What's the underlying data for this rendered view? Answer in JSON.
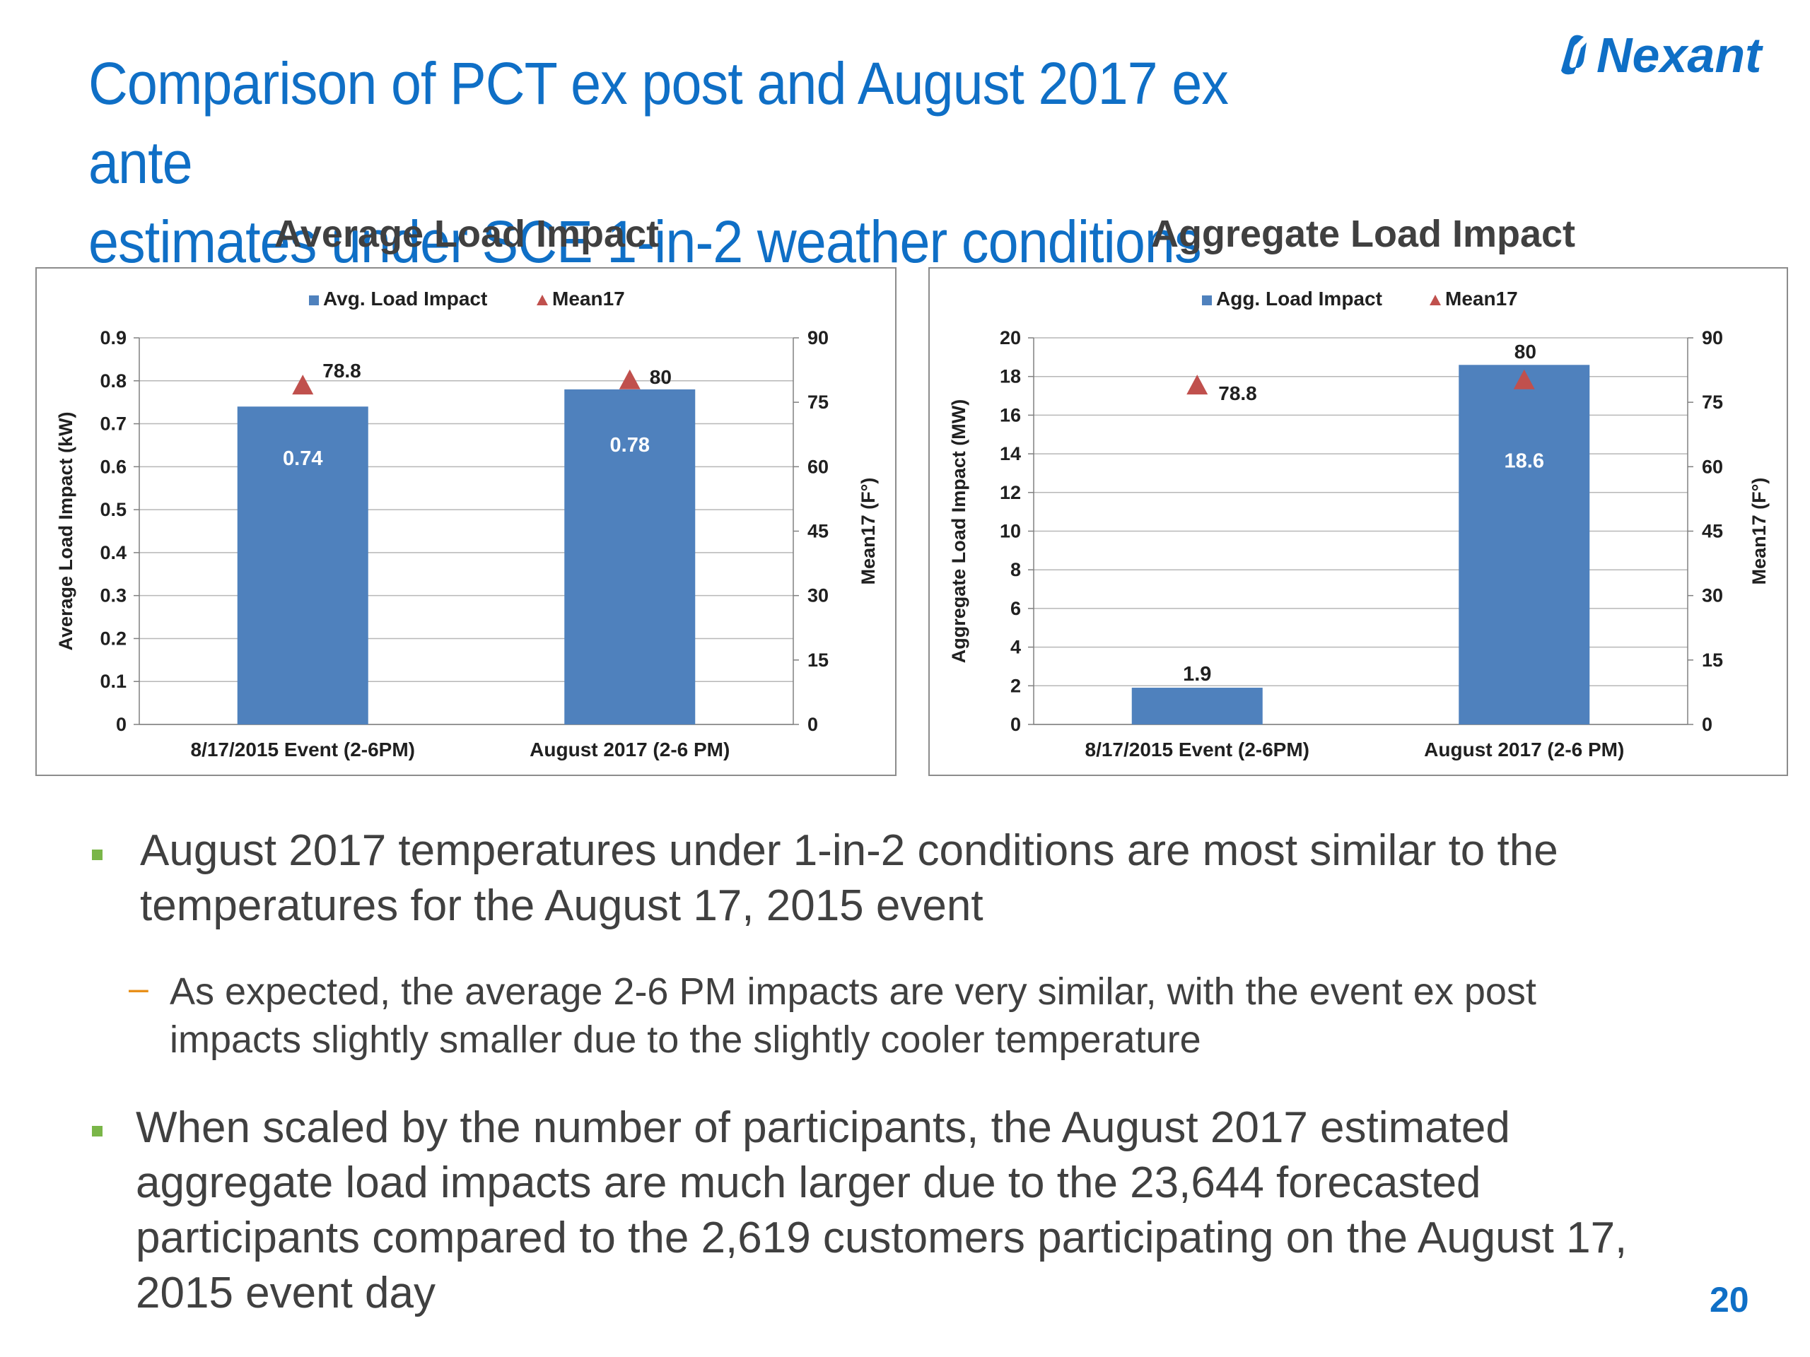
{
  "title": {
    "line1": "Comparison of PCT ex post and August 2017 ex ante",
    "line2": "estimates under SCE 1-in-2 weather conditions"
  },
  "logo": {
    "text": "Nexant",
    "color": "#0f6fc6"
  },
  "colors": {
    "bar": "#4f81bd",
    "marker": "#c0504d",
    "title": "#0f6fc6",
    "bullet": "#7ab648",
    "dash": "#e8901a"
  },
  "chart_data": [
    {
      "type": "bar",
      "title": "Average Load Impact",
      "categories": [
        "8/17/2015 Event (2-6PM)",
        "August 2017 (2-6 PM)"
      ],
      "series": [
        {
          "name": "Avg. Load Impact",
          "type": "bar",
          "axis": "left",
          "values": [
            0.74,
            0.78
          ],
          "labels": [
            "0.74",
            "0.78"
          ]
        },
        {
          "name": "Mean17",
          "type": "scatter",
          "marker": "triangle",
          "axis": "right",
          "values": [
            78.8,
            80
          ],
          "labels": [
            "78.8",
            "80"
          ]
        }
      ],
      "ylabel": "Average Load Impact (kW)",
      "y2label": "Mean17 (F°)",
      "ylim": [
        0,
        0.9
      ],
      "yticks": [
        "0",
        "0.1",
        "0.2",
        "0.3",
        "0.4",
        "0.5",
        "0.6",
        "0.7",
        "0.8",
        "0.9"
      ],
      "y2lim": [
        0,
        90
      ],
      "y2ticks": [
        "0",
        "15",
        "30",
        "45",
        "60",
        "75",
        "90"
      ],
      "legend": "top-center",
      "grid": true
    },
    {
      "type": "bar",
      "title": "Aggregate Load Impact",
      "categories": [
        "8/17/2015 Event (2-6PM)",
        "August 2017 (2-6 PM)"
      ],
      "series": [
        {
          "name": "Agg. Load Impact",
          "type": "bar",
          "axis": "left",
          "values": [
            1.9,
            18.6
          ],
          "labels": [
            "1.9",
            "18.6"
          ]
        },
        {
          "name": "Mean17",
          "type": "scatter",
          "marker": "triangle",
          "axis": "right",
          "values": [
            78.8,
            80
          ],
          "labels": [
            "78.8",
            "80"
          ]
        }
      ],
      "ylabel": "Aggregate Load Impact (MW)",
      "y2label": "Mean17 (F°)",
      "ylim": [
        0,
        20
      ],
      "yticks": [
        "0",
        "2",
        "4",
        "6",
        "8",
        "10",
        "12",
        "14",
        "16",
        "18",
        "20"
      ],
      "y2lim": [
        0,
        90
      ],
      "y2ticks": [
        "0",
        "15",
        "30",
        "45",
        "60",
        "75",
        "90"
      ],
      "legend": "top-center",
      "grid": true
    }
  ],
  "bullets": [
    {
      "line1": "August 2017 temperatures under 1-in-2 conditions are most similar to the",
      "line2": "temperatures for the August 17, 2015 event",
      "sub": {
        "dash": "–",
        "line1": "As expected, the average 2-6 PM impacts are very similar, with the event ex post",
        "line2": "impacts slightly smaller due to the slightly cooler temperature"
      }
    },
    {
      "line1": "When scaled by the number of participants, the August 2017 estimated",
      "line2": "aggregate load impacts are much larger due to the 23,644 forecasted",
      "line3": "participants compared to the 2,619 customers participating on the August 17,",
      "line4": "2015 event day"
    }
  ],
  "page_number": "20"
}
